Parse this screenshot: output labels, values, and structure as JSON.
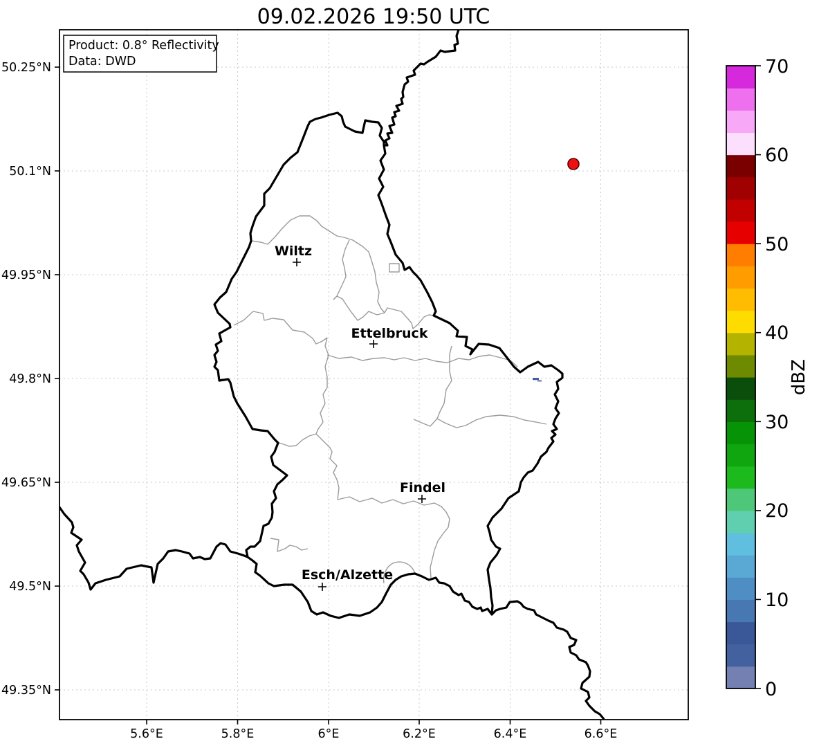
{
  "title": "09.02.2026 19:50 UTC",
  "info_box": {
    "line1": "Product: 0.8° Reflectivity",
    "line2": "Data: DWD"
  },
  "axes": {
    "lat_labels": [
      "50.25°N",
      "50.1°N",
      "49.95°N",
      "49.8°N",
      "49.65°N",
      "49.5°N",
      "49.35°N"
    ],
    "lon_labels": [
      "5.6°E",
      "5.8°E",
      "6°E",
      "6.2°E",
      "6.4°E",
      "6.6°E"
    ]
  },
  "cities": [
    {
      "name": "Wiltz"
    },
    {
      "name": "Ettelbruck"
    },
    {
      "name": "Findel"
    },
    {
      "name": "Esch/Alzette"
    }
  ],
  "echo_markers": {
    "large": {
      "color": "#ec1212",
      "edge": "#5a0000"
    },
    "small": {
      "color": "#3f619f"
    }
  },
  "colorbar": {
    "label": "dBZ",
    "min": 0,
    "max": 70,
    "segment_step": 2.5,
    "tick_labels": [
      "70",
      "60",
      "50",
      "40",
      "30",
      "20",
      "10",
      "0"
    ],
    "colors_bottom_to_top": [
      "#7380B1",
      "#42619E",
      "#3A5798",
      "#4878B2",
      "#4F8EC4",
      "#5AA9D4",
      "#60BFDF",
      "#60CFB0",
      "#4EC878",
      "#1CBA1C",
      "#0FA60F",
      "#069406",
      "#0C6F0C",
      "#0B4D0B",
      "#6E8A00",
      "#B3B300",
      "#FFDC00",
      "#FFBC00",
      "#FF9C00",
      "#FF7D00",
      "#E60000",
      "#C30000",
      "#A00000",
      "#7A0000",
      "#FCDFFC",
      "#F7A8F7",
      "#EF70EF",
      "#D628DC"
    ]
  }
}
